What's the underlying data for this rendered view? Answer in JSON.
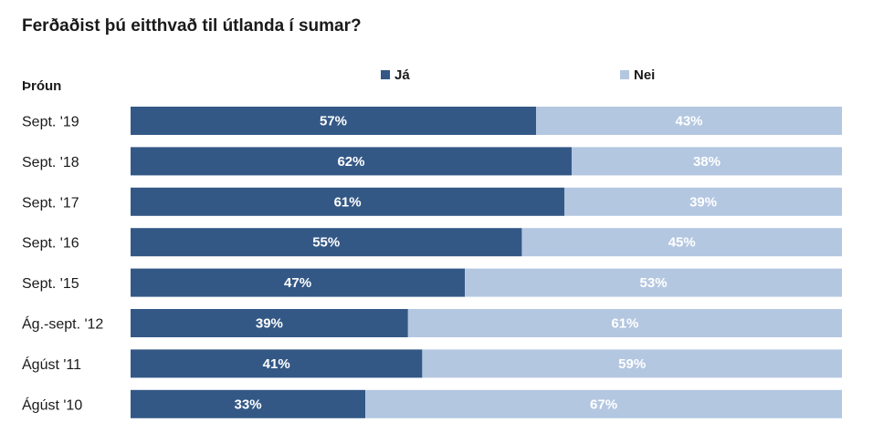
{
  "title": "Ferðaðist þú eitthvað til útlanda í sumar?",
  "group_label": "Þróun",
  "chart_data": {
    "type": "bar",
    "orientation": "horizontal",
    "stacked": true,
    "title": "Ferðaðist þú eitthvað til útlanda í sumar?",
    "categories": [
      "Sept. '19",
      "Sept. '18",
      "Sept. '17",
      "Sept. '16",
      "Sept. '15",
      "Ág.-sept. '12",
      "Ágúst '11",
      "Ágúst '10"
    ],
    "series": [
      {
        "name": "Já",
        "color": "#335886",
        "values": [
          57,
          62,
          61,
          55,
          47,
          39,
          41,
          33
        ]
      },
      {
        "name": "Nei",
        "color": "#b4c7e1",
        "values": [
          43,
          38,
          39,
          45,
          53,
          61,
          59,
          67
        ]
      }
    ],
    "value_suffix": "%",
    "xlim": [
      0,
      100
    ],
    "grid": false,
    "legend_position": "top"
  }
}
